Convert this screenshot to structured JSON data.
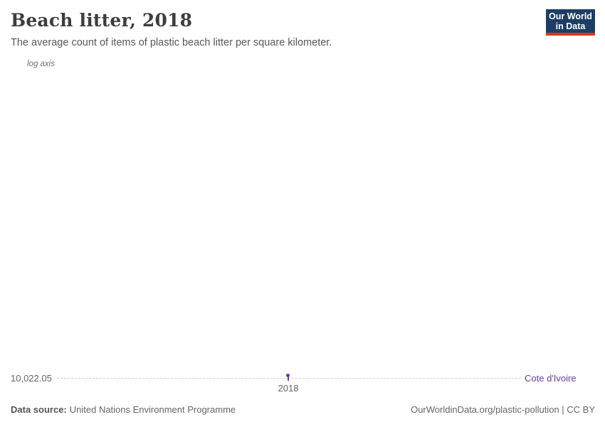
{
  "header": {
    "title": "Beach litter, 2018",
    "subtitle": "The average count of items of plastic beach litter per square kilometer.",
    "logo": {
      "line1": "Our World",
      "line2": "in Data",
      "background_color": "#1d3d63",
      "accent_color": "#e0312a"
    }
  },
  "plot": {
    "axis_note": "log axis",
    "y_tick_label": "10,022.05",
    "x_tick_label": "2018",
    "entity_label": "Cote d'Ivoire",
    "point_color": "#6d3e91",
    "gridline_color": "#cdcdcd"
  },
  "chart_data": {
    "type": "scatter",
    "title": "Beach litter, 2018",
    "subtitle": "The average count of items of plastic beach litter per square kilometer.",
    "series": [
      {
        "name": "Cote d'Ivoire",
        "x": [
          2018
        ],
        "values": [
          10022.05
        ],
        "color": "#6d3e91"
      }
    ],
    "x_tick_labels": [
      "2018"
    ],
    "y_tick_labels": [
      "10,022.05"
    ],
    "y_scale": "log",
    "xlabel": "",
    "ylabel": "",
    "grid": "horizontal-dashed",
    "legend_position": "right-inline-entity-label"
  },
  "footer": {
    "source_label": "Data source:",
    "source_value": "United Nations Environment Programme",
    "rights": "OurWorldinData.org/plastic-pollution | CC BY"
  }
}
